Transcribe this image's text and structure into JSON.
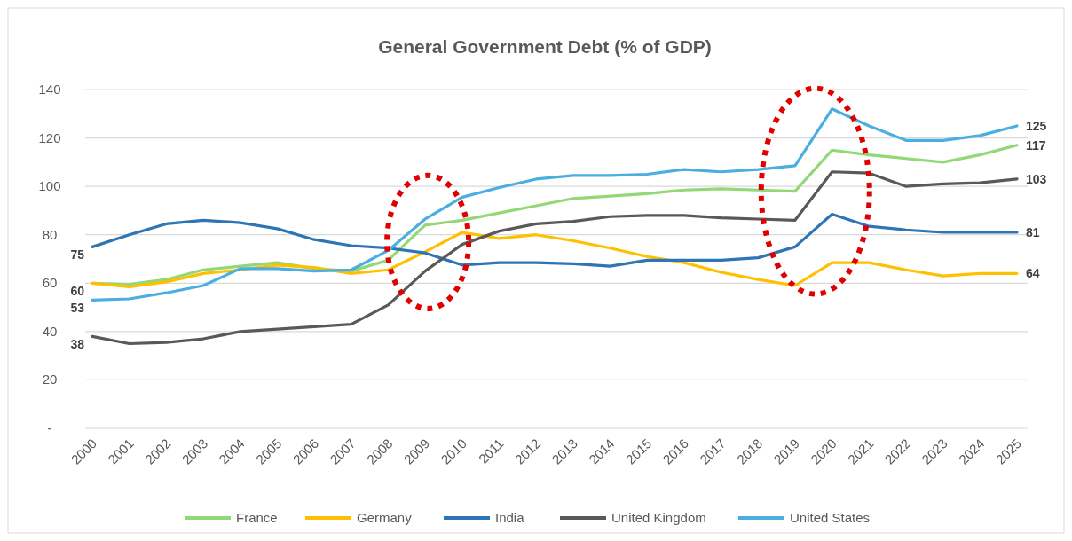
{
  "chart_data": {
    "type": "line",
    "title": "General Government Debt (% of GDP)",
    "categories": [
      "2000",
      "2001",
      "2002",
      "2003",
      "2004",
      "2005",
      "2006",
      "2007",
      "2008",
      "2009",
      "2010",
      "2011",
      "2012",
      "2013",
      "2014",
      "2015",
      "2016",
      "2017",
      "2018",
      "2019",
      "2020",
      "2021",
      "2022",
      "2023",
      "2024",
      "2025"
    ],
    "series": [
      {
        "name": "France",
        "color": "#92d877",
        "values": [
          60,
          59.5,
          61.5,
          65.5,
          67,
          68.5,
          66,
          65,
          69.5,
          84,
          86,
          89,
          92,
          95,
          96,
          97,
          98.5,
          99,
          98.5,
          98,
          115,
          113,
          111.5,
          110,
          113,
          117
        ],
        "value_labels": [
          null,
          null,
          null,
          null,
          null,
          null,
          null,
          null,
          null,
          null,
          null,
          null,
          null,
          null,
          null,
          null,
          null,
          null,
          null,
          null,
          null,
          null,
          null,
          null,
          null,
          "117"
        ]
      },
      {
        "name": "Germany",
        "color": "#ffc000",
        "values": [
          60,
          58.5,
          60.5,
          64,
          65.5,
          67.5,
          66.5,
          64,
          65.5,
          73,
          81,
          78.5,
          80,
          77.5,
          74.5,
          71,
          68.5,
          64.5,
          61.5,
          59,
          68.5,
          68.5,
          65.5,
          63,
          64,
          64
        ],
        "value_labels": [
          "60",
          null,
          null,
          null,
          null,
          null,
          null,
          null,
          null,
          null,
          null,
          null,
          null,
          null,
          null,
          null,
          null,
          null,
          null,
          null,
          null,
          null,
          null,
          null,
          null,
          "64"
        ]
      },
      {
        "name": "India",
        "color": "#2e75b6",
        "values": [
          75,
          80,
          84.5,
          86,
          85,
          82.5,
          78,
          75.5,
          74.5,
          72.5,
          67.5,
          68.5,
          68.5,
          68,
          67,
          69.5,
          69.5,
          69.5,
          70.5,
          75,
          88.5,
          83.5,
          82,
          81,
          81,
          81
        ],
        "value_labels": [
          "75",
          null,
          null,
          null,
          null,
          null,
          null,
          null,
          null,
          null,
          null,
          null,
          null,
          null,
          null,
          null,
          null,
          null,
          null,
          null,
          null,
          null,
          null,
          null,
          null,
          "81"
        ]
      },
      {
        "name": "United Kingdom",
        "color": "#595959",
        "values": [
          38,
          35,
          35.5,
          37,
          40,
          41,
          42,
          43,
          51,
          65,
          76,
          81.5,
          84.5,
          85.5,
          87.5,
          88,
          88,
          87,
          86.5,
          86,
          106,
          105.5,
          100,
          101,
          101.5,
          103
        ],
        "value_labels": [
          "38",
          null,
          null,
          null,
          null,
          null,
          null,
          null,
          null,
          null,
          null,
          null,
          null,
          null,
          null,
          null,
          null,
          null,
          null,
          null,
          null,
          null,
          null,
          null,
          null,
          "103"
        ]
      },
      {
        "name": "United States",
        "color": "#4aafe0",
        "values": [
          53,
          53.5,
          56,
          59,
          66,
          66,
          65,
          65.5,
          73.5,
          86.5,
          95.5,
          99.5,
          103,
          104.5,
          104.5,
          105,
          107,
          106,
          107,
          108.5,
          132,
          125,
          119,
          119,
          121,
          125
        ],
        "value_labels": [
          "53",
          null,
          null,
          null,
          null,
          null,
          null,
          null,
          null,
          null,
          null,
          null,
          null,
          null,
          null,
          null,
          null,
          null,
          null,
          null,
          null,
          null,
          null,
          null,
          null,
          "125"
        ]
      }
    ],
    "ylim": [
      0,
      140
    ],
    "yticks": [
      {
        "value": 0,
        "label": "-"
      },
      20,
      40,
      60,
      80,
      100,
      120,
      140
    ],
    "grid": "y",
    "legend": "bottom",
    "marker": "none",
    "line_style": "solid"
  }
}
